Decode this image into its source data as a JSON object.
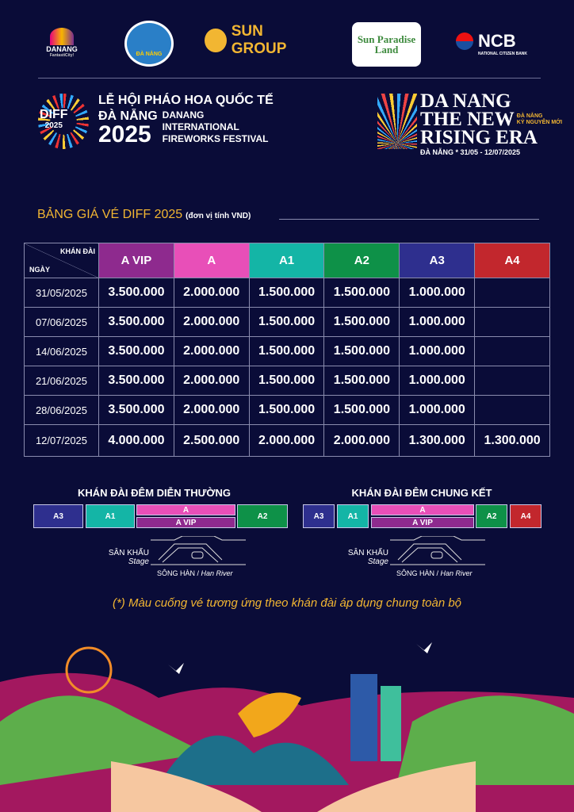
{
  "sponsors": [
    "DANANG",
    "ĐÀ NẴNG",
    "SUN GROUP",
    "Sun Paradise Land",
    "NCB"
  ],
  "sponsor_subtexts": {
    "danang": "FantastiCity!",
    "ncb": "NATIONAL CITIZEN BANK"
  },
  "festival": {
    "badge": "DIFF",
    "badge_year": "2025",
    "title_vi_1": "LỄ HỘI PHÁO HOA QUỐC TẾ",
    "title_vi_2": "ĐÀ NẴNG",
    "year": "2025",
    "title_en_1": "DANANG",
    "title_en_2": "INTERNATIONAL",
    "title_en_3": "FIREWORKS FESTIVAL"
  },
  "slogan": {
    "line1": "DA NANG",
    "line2": "THE NEW",
    "line3": "RISING ERA",
    "tag1": "ĐÀ NẴNG",
    "tag2": "KỶ NGUYÊN MỚI",
    "dates": "ĐÀ NẴNG * 31/05 - 12/07/2025"
  },
  "price_title": "BẢNG GIÁ VÉ DIFF 2025",
  "price_unit": "(đơn vị tính VND)",
  "table": {
    "corner_top": "KHÁN ĐÀI",
    "corner_bottom": "NGÀY",
    "columns": [
      {
        "label": "A VIP",
        "color": "#8e2a8e"
      },
      {
        "label": "A",
        "color": "#e84fb8"
      },
      {
        "label": "A1",
        "color": "#14b5a6"
      },
      {
        "label": "A2",
        "color": "#0e9148"
      },
      {
        "label": "A3",
        "color": "#2e2f8e"
      },
      {
        "label": "A4",
        "color": "#c2272d"
      }
    ],
    "rows": [
      {
        "date": "31/05/2025",
        "prices": [
          "3.500.000",
          "2.000.000",
          "1.500.000",
          "1.500.000",
          "1.000.000",
          ""
        ]
      },
      {
        "date": "07/06/2025",
        "prices": [
          "3.500.000",
          "2.000.000",
          "1.500.000",
          "1.500.000",
          "1.000.000",
          ""
        ]
      },
      {
        "date": "14/06/2025",
        "prices": [
          "3.500.000",
          "2.000.000",
          "1.500.000",
          "1.500.000",
          "1.000.000",
          ""
        ]
      },
      {
        "date": "21/06/2025",
        "prices": [
          "3.500.000",
          "2.000.000",
          "1.500.000",
          "1.500.000",
          "1.000.000",
          ""
        ]
      },
      {
        "date": "28/06/2025",
        "prices": [
          "3.500.000",
          "2.000.000",
          "1.500.000",
          "1.500.000",
          "1.000.000",
          ""
        ]
      },
      {
        "date": "12/07/2025",
        "prices": [
          "4.000.000",
          "2.500.000",
          "2.000.000",
          "2.000.000",
          "1.300.000",
          "1.300.000"
        ]
      }
    ]
  },
  "maps": [
    {
      "title": "KHÁN ĐÀI ĐÊM DIỄN THƯỜNG",
      "seats": [
        "A3",
        "A1",
        "A",
        "A VIP",
        "A2"
      ]
    },
    {
      "title": "KHÁN ĐÀI ĐÊM CHUNG KẾT",
      "seats": [
        "A3",
        "A1",
        "A",
        "A VIP",
        "A2",
        "A4"
      ]
    }
  ],
  "stage_label": "SÂN KHẤU",
  "stage_label_en": "Stage",
  "river_label": "SÔNG HÀN /",
  "river_label_en": "Han River",
  "note": "(*) Màu cuống vé tương ứng theo khán đài áp dụng chung toàn bộ",
  "colors": {
    "background": "#0a0c38",
    "title_gold": "#f2b632"
  }
}
